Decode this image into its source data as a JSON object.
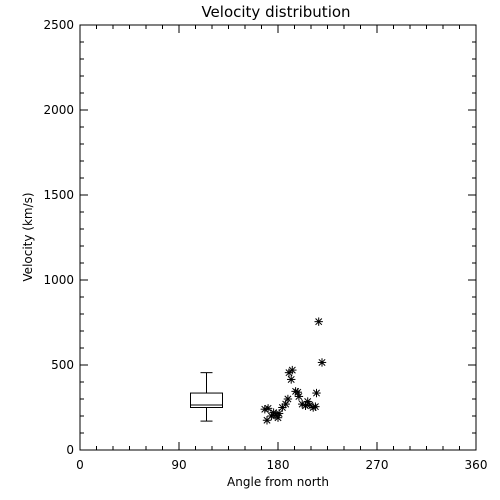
{
  "chart_data": {
    "type": "scatter",
    "title": "Velocity distribution",
    "xlabel": "Angle from north",
    "ylabel": "Velocity (km/s)",
    "xlim": [
      0,
      360
    ],
    "ylim": [
      0,
      2500
    ],
    "xticks": [
      0,
      90,
      180,
      270,
      360
    ],
    "yticks": [
      0,
      500,
      1000,
      1500,
      2000,
      2500
    ],
    "grid": false,
    "points": [
      {
        "x": 168,
        "y": 240
      },
      {
        "x": 171,
        "y": 245
      },
      {
        "x": 170,
        "y": 175
      },
      {
        "x": 174,
        "y": 200
      },
      {
        "x": 176,
        "y": 220
      },
      {
        "x": 178,
        "y": 205
      },
      {
        "x": 181,
        "y": 215
      },
      {
        "x": 180,
        "y": 190
      },
      {
        "x": 184,
        "y": 250
      },
      {
        "x": 187,
        "y": 270
      },
      {
        "x": 189,
        "y": 300
      },
      {
        "x": 190,
        "y": 455
      },
      {
        "x": 193,
        "y": 470
      },
      {
        "x": 192,
        "y": 415
      },
      {
        "x": 196,
        "y": 345
      },
      {
        "x": 198,
        "y": 340
      },
      {
        "x": 199,
        "y": 315
      },
      {
        "x": 202,
        "y": 270
      },
      {
        "x": 205,
        "y": 260
      },
      {
        "x": 207,
        "y": 285
      },
      {
        "x": 209,
        "y": 265
      },
      {
        "x": 212,
        "y": 250
      },
      {
        "x": 214,
        "y": 255
      },
      {
        "x": 215,
        "y": 335
      },
      {
        "x": 217,
        "y": 755
      },
      {
        "x": 220,
        "y": 515
      }
    ],
    "boxplot": {
      "x": 115,
      "whisker_low": 170,
      "q1": 250,
      "median": 265,
      "q3": 335,
      "whisker_high": 455
    }
  }
}
